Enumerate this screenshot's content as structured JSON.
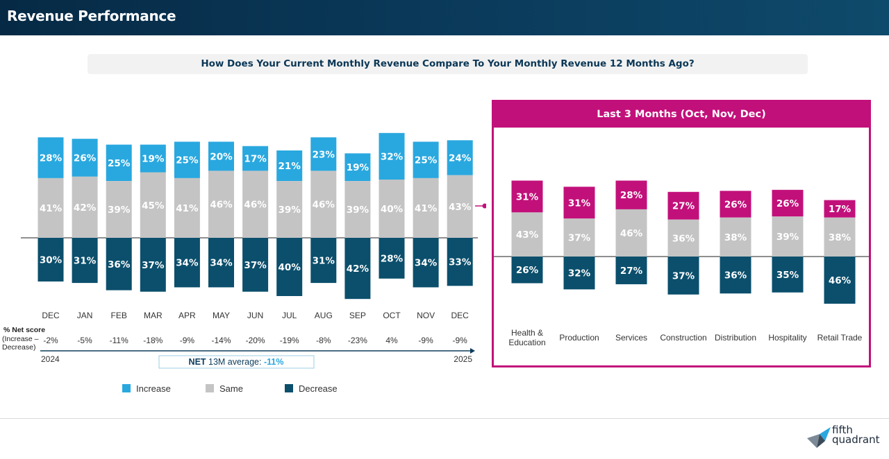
{
  "header": {
    "title": "Revenue Performance"
  },
  "question": "How Does Your Current Monthly Revenue Compare To Your Monthly Revenue 12 Months Ago?",
  "colors": {
    "increase": "#29a8df",
    "same": "#c4c4c4",
    "decrease": "#0b4f6c",
    "accent": "#c2107a",
    "header": "#0b3b5c"
  },
  "chart_data": [
    {
      "type": "bar",
      "subtype": "diverging-stacked",
      "categories": [
        "DEC",
        "JAN",
        "FEB",
        "MAR",
        "APR",
        "MAY",
        "JUN",
        "JUL",
        "AUG",
        "SEP",
        "OCT",
        "NOV",
        "DEC"
      ],
      "series": [
        {
          "name": "Increase",
          "values": [
            28,
            26,
            25,
            19,
            25,
            20,
            17,
            21,
            23,
            19,
            32,
            25,
            24
          ]
        },
        {
          "name": "Same",
          "values": [
            41,
            42,
            39,
            45,
            41,
            46,
            46,
            39,
            46,
            39,
            40,
            41,
            43
          ]
        },
        {
          "name": "Decrease",
          "values": [
            30,
            31,
            36,
            37,
            34,
            34,
            37,
            40,
            31,
            42,
            28,
            34,
            33
          ]
        }
      ],
      "value_suffix": "%",
      "net_score": {
        "label": "% Net score",
        "sublabel_1": "(Increase –",
        "sublabel_2": "Decrease)",
        "values": [
          "-2%",
          "-5%",
          "-11%",
          "-18%",
          "-9%",
          "-14%",
          "-20%",
          "-19%",
          "-8%",
          "-23%",
          "4%",
          "-9%",
          "-9%"
        ]
      },
      "timeline": {
        "start": "2024",
        "end": "2025"
      },
      "net_average": {
        "prefix": "NET",
        "text": " 13M average: ",
        "value": "-11%"
      },
      "legend": [
        "Increase",
        "Same",
        "Decrease"
      ]
    },
    {
      "type": "bar",
      "subtype": "diverging-stacked",
      "title": "Last 3 Months (Oct, Nov, Dec)",
      "categories": [
        "Health & Education",
        "Production",
        "Services",
        "Construction",
        "Distribution",
        "Hospitality",
        "Retail Trade"
      ],
      "category_lines": [
        [
          "Health &",
          "Education"
        ],
        [
          "Production"
        ],
        [
          "Services"
        ],
        [
          "Construction"
        ],
        [
          "Distribution"
        ],
        [
          "Hospitality"
        ],
        [
          "Retail Trade"
        ]
      ],
      "series": [
        {
          "name": "Increase",
          "values": [
            31,
            31,
            28,
            27,
            26,
            26,
            17
          ]
        },
        {
          "name": "Same",
          "values": [
            43,
            37,
            46,
            36,
            38,
            39,
            38
          ]
        },
        {
          "name": "Decrease",
          "values": [
            26,
            32,
            27,
            37,
            36,
            35,
            46
          ]
        }
      ],
      "value_suffix": "%"
    }
  ],
  "logo": {
    "line1": "fifth",
    "line2": "quadrant"
  }
}
